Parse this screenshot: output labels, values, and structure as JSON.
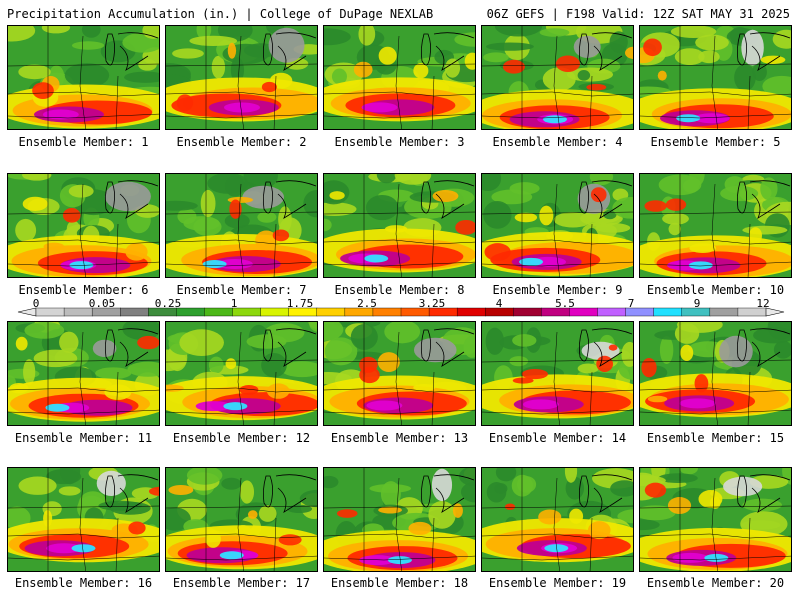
{
  "header": {
    "left_title": "Precipitation Accumulation (in.) | College of DuPage NEXLAB",
    "right_title": "06Z GEFS | F198 Valid: 12Z SAT MAY 31 2025"
  },
  "legend": {
    "tick_labels": [
      "0",
      "0.05",
      "0.25",
      "1",
      "1.75",
      "2.5",
      "3.25",
      "4",
      "5.5",
      "7",
      "9",
      "12"
    ],
    "colors": [
      "#d4d4d4",
      "#bcbcbc",
      "#a0a0a0",
      "#808080",
      "#3c8c3c",
      "#2ea02e",
      "#4cb818",
      "#8cd80c",
      "#d8f400",
      "#fff200",
      "#ffd000",
      "#ffa800",
      "#ff8000",
      "#ff5a00",
      "#ff2a00",
      "#e00000",
      "#b80000",
      "#a00030",
      "#c00080",
      "#e000c0",
      "#c060ff",
      "#9090ff",
      "#20e0ff",
      "#40c0c0",
      "#a0a0a0",
      "#d0d0d0"
    ]
  },
  "members": [
    {
      "label": "Ensemble Member: 1"
    },
    {
      "label": "Ensemble Member: 2"
    },
    {
      "label": "Ensemble Member: 3"
    },
    {
      "label": "Ensemble Member: 4"
    },
    {
      "label": "Ensemble Member: 5"
    },
    {
      "label": "Ensemble Member: 6"
    },
    {
      "label": "Ensemble Member: 7"
    },
    {
      "label": "Ensemble Member: 8"
    },
    {
      "label": "Ensemble Member: 9"
    },
    {
      "label": "Ensemble Member: 10"
    },
    {
      "label": "Ensemble Member: 11"
    },
    {
      "label": "Ensemble Member: 12"
    },
    {
      "label": "Ensemble Member: 13"
    },
    {
      "label": "Ensemble Member: 14"
    },
    {
      "label": "Ensemble Member: 15"
    },
    {
      "label": "Ensemble Member: 16"
    },
    {
      "label": "Ensemble Member: 17"
    },
    {
      "label": "Ensemble Member: 18"
    },
    {
      "label": "Ensemble Member: 19"
    },
    {
      "label": "Ensemble Member: 20"
    }
  ]
}
